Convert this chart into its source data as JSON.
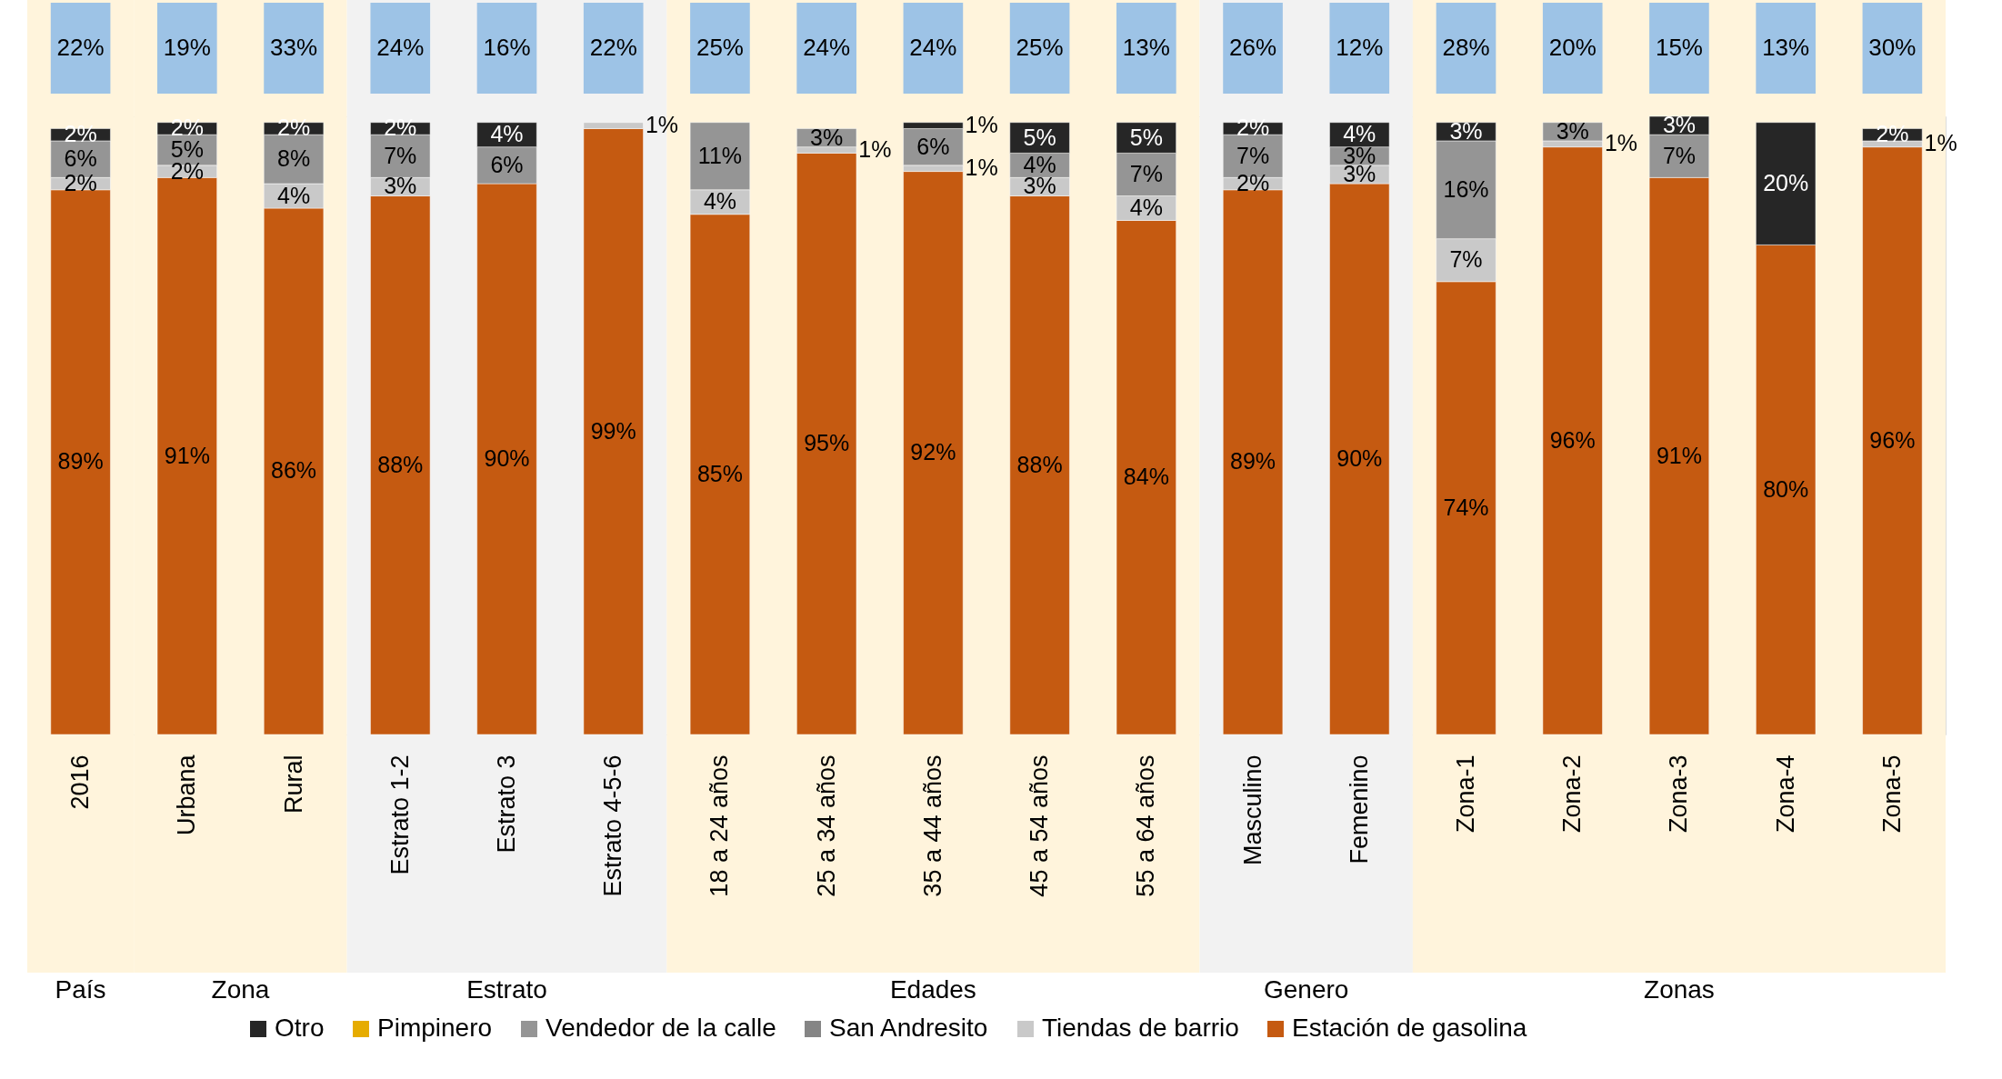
{
  "chart_data": {
    "type": "bar",
    "stacked": true,
    "legend": "bottom",
    "categories": [
      "2016",
      "Urbana",
      "Rural",
      "Estrato 1-2",
      "Estrato 3",
      "Estrato 4-5-6",
      "18 a 24 años",
      "25 a 34 años",
      "35 a 44 años",
      "45 a 54 años",
      "55 a 64 años",
      "Masculino",
      "Femenino",
      "Zona-1",
      "Zona-2",
      "Zona-3",
      "Zona-4",
      "Zona-5"
    ],
    "series": [
      {
        "name": "Estación de gasolina",
        "color": "#c55a11",
        "values": [
          89,
          91,
          86,
          88,
          90,
          99,
          85,
          95,
          92,
          88,
          84,
          89,
          90,
          74,
          96,
          91,
          80,
          96
        ],
        "value_labels": [
          "89%",
          "91%",
          "86%",
          "88%",
          "90%",
          "99%",
          "85%",
          "95%",
          "92%",
          "88%",
          "84%",
          "89%",
          "90%",
          "74%",
          "96%",
          "91%",
          "80%",
          "96%"
        ]
      },
      {
        "name": "Tiendas de barrio",
        "color": "#c9c9c9",
        "values": [
          2,
          2,
          4,
          3,
          null,
          1,
          4,
          1,
          1,
          3,
          4,
          2,
          3,
          7,
          1,
          null,
          null,
          1
        ],
        "value_labels": [
          "2%",
          "2%",
          "4%",
          "3%",
          null,
          "1%",
          "4%",
          "1%",
          "1%",
          "3%",
          "4%",
          "2%",
          "3%",
          "7%",
          "1%",
          null,
          null,
          "1%"
        ]
      },
      {
        "name": "San Andresito",
        "color": "#858585",
        "values": [
          null,
          null,
          null,
          null,
          null,
          null,
          null,
          null,
          null,
          null,
          null,
          null,
          null,
          null,
          null,
          null,
          null,
          null
        ]
      },
      {
        "name": "Vendedor de la calle",
        "color": "#959595",
        "values": [
          6,
          5,
          8,
          7,
          6,
          null,
          11,
          3,
          6,
          4,
          7,
          7,
          3,
          16,
          3,
          7,
          null,
          null
        ],
        "value_labels": [
          "6%",
          "5%",
          "8%",
          "7%",
          "6%",
          null,
          "11%",
          "3%",
          "6%",
          "4%",
          "7%",
          "7%",
          "3%",
          "16%",
          "3%",
          "7%",
          null,
          null
        ]
      },
      {
        "name": "Pimpinero",
        "color": "#e6ac00",
        "values": [
          null,
          null,
          null,
          null,
          null,
          null,
          null,
          null,
          null,
          null,
          null,
          null,
          null,
          null,
          null,
          null,
          null,
          null
        ]
      },
      {
        "name": "Otro",
        "color": "#262626",
        "values": [
          2,
          2,
          2,
          2,
          4,
          null,
          null,
          null,
          1,
          5,
          5,
          2,
          4,
          3,
          null,
          3,
          20,
          2
        ],
        "value_labels": [
          "2%",
          "2%",
          "2%",
          "2%",
          "4%",
          null,
          null,
          null,
          "1%",
          "5%",
          "5%",
          "2%",
          "4%",
          "3%",
          null,
          "3%",
          "20%",
          "2%"
        ]
      }
    ],
    "annotations": [
      "22%",
      "19%",
      "33%",
      "24%",
      "16%",
      "22%",
      "25%",
      "24%",
      "24%",
      "25%",
      "13%",
      "26%",
      "12%",
      "28%",
      "20%",
      "15%",
      "13%",
      "30%"
    ],
    "bands": [
      {
        "axis": "x",
        "from": "2016",
        "to": "2016",
        "label": "País",
        "color": "#fff4dc"
      },
      {
        "axis": "x",
        "from": "Urbana",
        "to": "Rural",
        "label": "Zona",
        "color": "#fff4dc"
      },
      {
        "axis": "x",
        "from": "Estrato 1-2",
        "to": "Estrato 4-5-6",
        "label": "Estrato",
        "color": "#f2f2f2"
      },
      {
        "axis": "x",
        "from": "18 a 24 años",
        "to": "55 a 64 años",
        "label": "Edades",
        "color": "#fff4dc"
      },
      {
        "axis": "x",
        "from": "Masculino",
        "to": "Femenino",
        "label": "Genero",
        "color": "#f2f2f2"
      },
      {
        "axis": "x",
        "from": "Zona-1",
        "to": "Zona-5",
        "label": "Zonas",
        "color": "#fff4dc"
      }
    ]
  }
}
